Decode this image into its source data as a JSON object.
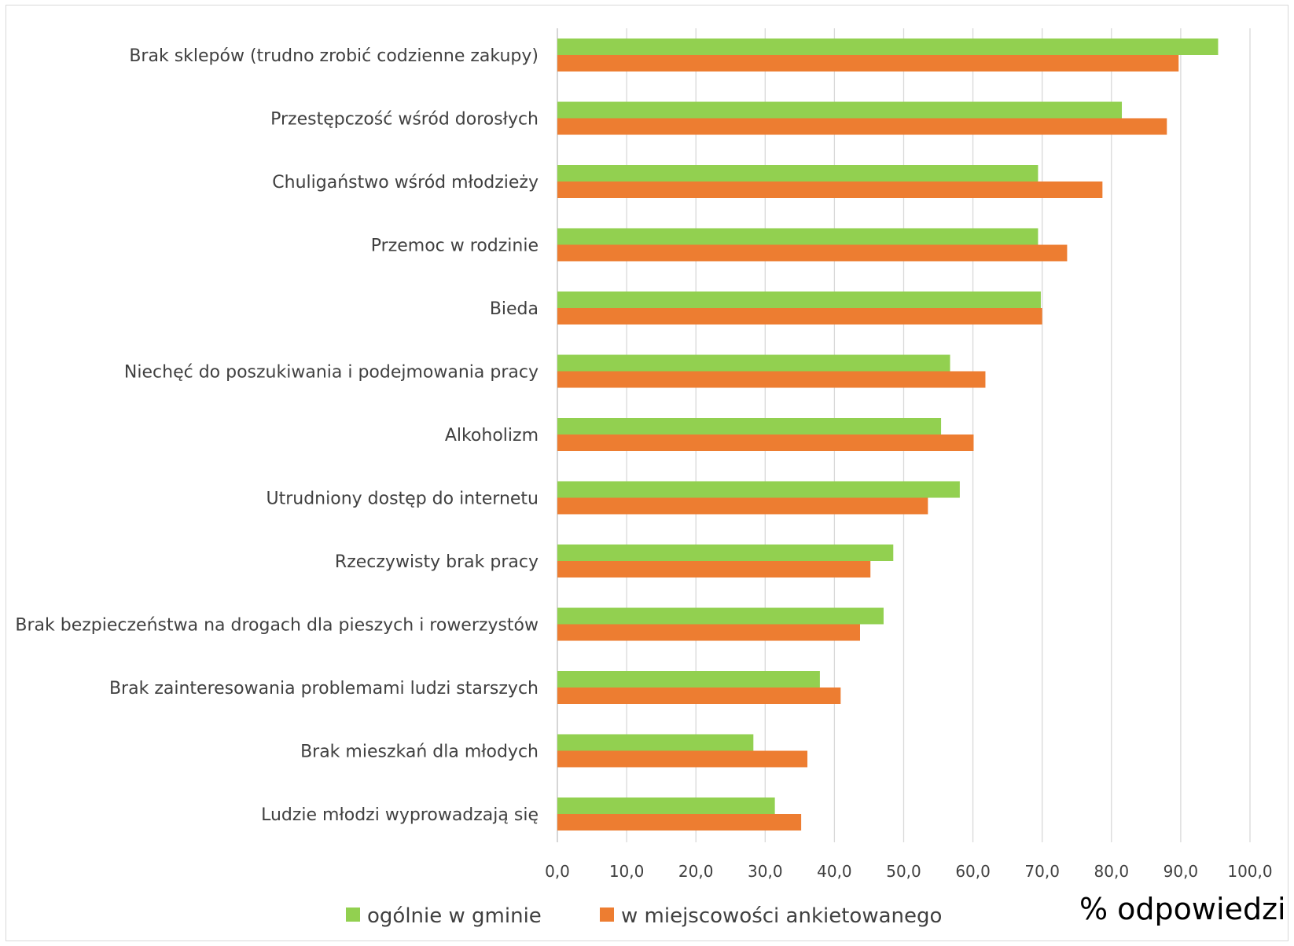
{
  "chart_data": {
    "type": "bar",
    "orientation": "horizontal",
    "categories": [
      "Brak sklepów (trudno zrobić codzienne zakupy)",
      "Przestępczość wśród dorosłych",
      "Chuligaństwo wśród młodzieży",
      "Przemoc w rodzinie",
      "Bieda",
      "Niechęć do poszukiwania i podejmowania pracy",
      "Alkoholizm",
      "Utrudniony dostęp do internetu",
      "Rzeczywisty brak pracy",
      "Brak bezpieczeństwa na drogach dla pieszych i rowerzystów",
      "Brak zainteresowania problemami ludzi starszych",
      "Brak mieszkań dla młodych",
      "Ludzie młodzi wyprowadzają się"
    ],
    "series": [
      {
        "name": "ogólnie w gminie",
        "color": "#92d050",
        "values": [
          95.4,
          81.5,
          69.4,
          69.4,
          69.8,
          56.7,
          55.4,
          58.1,
          48.5,
          47.1,
          37.9,
          28.3,
          31.4
        ]
      },
      {
        "name": "w miejscowości ankietowanego",
        "color": "#ed7d31",
        "values": [
          89.7,
          88.0,
          78.7,
          73.6,
          70.0,
          61.8,
          60.1,
          53.5,
          45.2,
          43.7,
          40.9,
          36.1,
          35.2
        ]
      }
    ],
    "xlim": [
      0,
      100
    ],
    "xticks": [
      "0,0",
      "10,0",
      "20,0",
      "30,0",
      "40,0",
      "50,0",
      "60,0",
      "70,0",
      "80,0",
      "90,0",
      "100,0"
    ],
    "xlabel": "% odpowiedzi",
    "grid": "vertical",
    "legend_position": "bottom"
  }
}
